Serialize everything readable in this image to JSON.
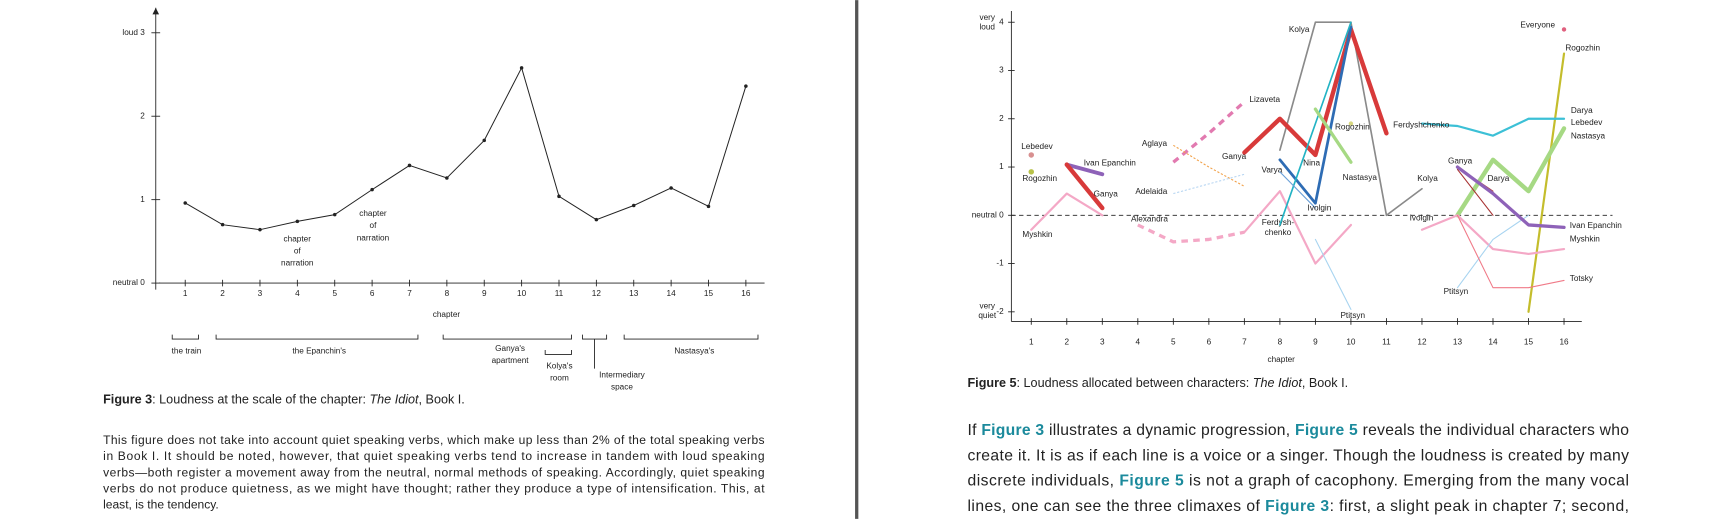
{
  "chart_data": [
    {
      "type": "line",
      "x": [
        1,
        2,
        3,
        4,
        5,
        6,
        7,
        8,
        9,
        10,
        11,
        12,
        13,
        14,
        15,
        16
      ],
      "xlim": [
        0.3,
        16.5
      ],
      "xticks": [
        1,
        2,
        3,
        4,
        5,
        6,
        7,
        8,
        9,
        10,
        11,
        12,
        13,
        14,
        15,
        16
      ],
      "ylim": [
        0,
        3.3
      ],
      "yticks": [
        {
          "value": 0,
          "label": "neutral 0"
        },
        1,
        2,
        {
          "value": 3,
          "label": "loud 3"
        }
      ],
      "values": [
        0.96,
        0.7,
        0.64,
        0.74,
        0.82,
        1.12,
        1.41,
        1.26,
        1.71,
        2.58,
        1.04,
        0.76,
        0.93,
        1.14,
        0.92,
        2.36
      ],
      "color": "#222",
      "xlabel": "chapter",
      "annotations": [
        {
          "lines": [
            "chapter",
            "of",
            "narration"
          ]
        },
        {
          "lines": [
            "chapter",
            "of",
            "narration"
          ]
        }
      ],
      "regions": [
        {
          "lines": [
            "the train"
          ]
        },
        {
          "lines": [
            "the Epanchin's"
          ]
        },
        {
          "lines": [
            "Ganya's",
            "apartment"
          ]
        },
        {
          "lines": [
            "Kolya's",
            "room"
          ]
        },
        {
          "lines": [
            "Intermediary",
            "space"
          ]
        },
        {
          "lines": [
            "Nastasya's"
          ]
        }
      ]
    },
    {
      "type": "line",
      "x": [
        1,
        2,
        3,
        4,
        5,
        6,
        7,
        8,
        9,
        10,
        11,
        12,
        13,
        14,
        15,
        16
      ],
      "xlim": [
        0.44,
        16.5
      ],
      "xticks": [
        1,
        2,
        3,
        4,
        5,
        6,
        7,
        8,
        9,
        10,
        11,
        12,
        13,
        14,
        15,
        16
      ],
      "ylim": [
        -2.2,
        4.3
      ],
      "yticks": [
        -2,
        -1,
        {
          "value": 0,
          "label": "neutral 0"
        },
        1,
        2,
        3,
        4
      ],
      "xlabel": "chapter",
      "annotations": [
        {
          "lines": [
            "very",
            "loud"
          ]
        },
        {
          "lines": [
            "very",
            "quiet"
          ]
        },
        {
          "lines": [
            "Ferdysh-",
            "chenko"
          ]
        }
      ],
      "series": [
        {
          "name": "Kolya",
          "color": "#8a8a8a",
          "width": 1.5,
          "values": [
            null,
            null,
            null,
            null,
            null,
            null,
            null,
            1.35,
            4,
            4,
            0,
            0.55,
            null,
            null,
            null,
            null
          ]
        },
        {
          "name": "Everyone",
          "color": "#e0607e",
          "width": 4,
          "values": [
            null,
            null,
            null,
            null,
            null,
            null,
            null,
            null,
            null,
            null,
            null,
            null,
            null,
            null,
            null,
            3.85
          ]
        },
        {
          "name": "Rogozhin",
          "color": "#c4bd2c",
          "width": 2,
          "values": [
            null,
            null,
            null,
            null,
            null,
            null,
            null,
            null,
            null,
            null,
            null,
            null,
            null,
            null,
            -2,
            3.35
          ]
        },
        {
          "name": "Darya",
          "color": "#a6d984",
          "width": 4,
          "values": [
            null,
            null,
            null,
            null,
            null,
            null,
            null,
            null,
            null,
            null,
            null,
            null,
            0,
            1.15,
            0.5,
            1.8
          ]
        },
        {
          "name": "Ferdyshchenko",
          "color": "#3cc0d6",
          "width": 2,
          "values": [
            null,
            null,
            null,
            null,
            null,
            null,
            null,
            null,
            null,
            null,
            null,
            1.9,
            1.85,
            1.65,
            2,
            2
          ]
        },
        {
          "name": "Ivan Epanchin",
          "color": "#8e62b8",
          "width": 3.5,
          "values": [
            null,
            1.05,
            0.85,
            null,
            null,
            null,
            null,
            null,
            null,
            null,
            null,
            null,
            null,
            null,
            null,
            null
          ]
        },
        {
          "name": "Ganya",
          "color": "#d83a3a",
          "width": 4,
          "values": [
            null,
            1.05,
            0.15,
            null,
            null,
            null,
            1.3,
            2,
            1.25,
            3.85,
            1.7,
            null,
            null,
            null,
            null,
            null
          ]
        },
        {
          "name": "Lizaveta",
          "color": "#e27ab0",
          "width": 3,
          "dashed": true,
          "values": [
            null,
            null,
            null,
            null,
            1.1,
            1.7,
            2.35,
            null,
            null,
            null,
            null,
            null,
            null,
            null,
            null,
            null
          ]
        },
        {
          "name": "Aglaya",
          "color": "#f2a24a",
          "width": 1,
          "dashed": true,
          "values": [
            null,
            null,
            null,
            null,
            1.45,
            1,
            0.6,
            null,
            null,
            null,
            null,
            null,
            null,
            null,
            null,
            null
          ]
        },
        {
          "name": "Lebedev",
          "color": "#d89090",
          "width": 5,
          "values": [
            1.25,
            null,
            null,
            null,
            null,
            null,
            null,
            null,
            null,
            null,
            null,
            null,
            null,
            null,
            null,
            null
          ]
        },
        {
          "name": "Rogozhin",
          "color": "#b8c24a",
          "width": 5,
          "values": [
            0.9,
            null,
            null,
            null,
            null,
            null,
            null,
            null,
            null,
            null,
            null,
            null,
            null,
            null,
            null,
            null
          ]
        },
        {
          "name": "Rogozhin",
          "color": "#d8d880",
          "width": 4,
          "values": [
            null,
            null,
            null,
            null,
            null,
            null,
            null,
            null,
            null,
            1.9,
            null,
            null,
            null,
            null,
            null,
            null
          ]
        },
        {
          "name": "Myshkin",
          "color": "#f4a8c6",
          "width": 2,
          "values": [
            -0.3,
            0.45,
            0,
            null,
            null,
            null,
            -0.35,
            0.5,
            -1,
            -0.2,
            null,
            -0.3,
            0,
            -0.7,
            -0.8,
            -0.7
          ]
        },
        {
          "name": "Alexandra",
          "color": "#f4a8c6",
          "width": 3,
          "dashed": true,
          "values": [
            null,
            null,
            null,
            -0.2,
            -0.55,
            -0.5,
            -0.35,
            null,
            null,
            null,
            null,
            null,
            null,
            null,
            null,
            null
          ]
        },
        {
          "name": "Adelaida",
          "color": "#b8d6f2",
          "width": 1,
          "dashed": true,
          "values": [
            null,
            null,
            null,
            null,
            0.45,
            0.65,
            0.85,
            null,
            null,
            null,
            null,
            null,
            null,
            null,
            null,
            null
          ]
        },
        {
          "name": "Varya",
          "color": "#2e6cb4",
          "width": 2.5,
          "values": [
            null,
            null,
            null,
            null,
            null,
            null,
            null,
            1.15,
            0.25,
            3.9,
            null,
            null,
            null,
            null,
            null,
            null
          ]
        },
        {
          "name": "Nina",
          "color": "#22b3c4",
          "width": 1.5,
          "values": [
            null,
            null,
            null,
            null,
            null,
            null,
            null,
            -0.2,
            1.9,
            4,
            null,
            null,
            null,
            null,
            null,
            null
          ]
        },
        {
          "name": "Ivolgin",
          "color": "#6aa0d8",
          "width": 1,
          "values": [
            null,
            null,
            null,
            null,
            null,
            null,
            null,
            0.9,
            0.15,
            null,
            null,
            null,
            null,
            null,
            null,
            null
          ]
        },
        {
          "name": "Nastasya",
          "color": "#a6d984",
          "width": 3,
          "values": [
            null,
            null,
            null,
            null,
            null,
            null,
            null,
            null,
            2.2,
            1.1,
            null,
            null,
            null,
            null,
            null,
            null
          ]
        },
        {
          "name": "Ptitsyn",
          "color": "#a8d4f0",
          "width": 1,
          "values": [
            null,
            null,
            null,
            null,
            null,
            null,
            null,
            null,
            -0.5,
            -1.95,
            null,
            null,
            -1.5,
            -0.5,
            0,
            null
          ]
        },
        {
          "name": "Totsky",
          "color": "#f07a88",
          "width": 1,
          "values": [
            null,
            null,
            null,
            null,
            null,
            null,
            null,
            null,
            null,
            null,
            null,
            null,
            0,
            -1.5,
            -1.5,
            -1.35
          ]
        },
        {
          "name": "Kolya",
          "color": "#a83232",
          "width": 1,
          "values": [
            null,
            null,
            null,
            null,
            null,
            null,
            null,
            null,
            null,
            null,
            null,
            null,
            0.95,
            0,
            null,
            null
          ]
        },
        {
          "name": "Ganya",
          "color": "#b04040",
          "width": 1,
          "values": [
            null,
            null,
            null,
            null,
            null,
            null,
            null,
            null,
            null,
            null,
            null,
            null,
            1,
            0.5,
            null,
            null
          ]
        },
        {
          "name": "Ivan Epanchin",
          "color": "#8e62b8",
          "width": 3,
          "values": [
            null,
            null,
            null,
            null,
            null,
            null,
            null,
            null,
            null,
            null,
            null,
            null,
            1,
            0.45,
            -0.2,
            -0.25
          ]
        }
      ]
    }
  ],
  "document": {
    "figure3": {
      "label": "Figure 3",
      "text": ": Loudness at the scale of the chapter: ",
      "title": "The Idiot",
      "end": ", Book I.",
      "note": [
        "This figure does not take into account quiet speaking verbs, which make up less than 2% of the total speaking verbs",
        "in Book I. It should be noted, however, that quiet speaking verbs tend to increase in tandem with loud speaking",
        "verbs—both register a movement away from the neutral, normal methods of speaking. Accordingly, quiet speaking",
        "verbs do not produce quietness, as we might have thought; rather they produce a type of intensification. This, at",
        "least, is the tendency."
      ]
    },
    "figure5": {
      "label": "Figure 5",
      "text": ": Loudness allocated between characters: ",
      "title": "The Idiot",
      "end": ", Book I."
    },
    "paragraph": [
      [
        {
          "text": "If "
        },
        {
          "link": "Figure 3"
        },
        {
          "text": " illustrates a dynamic progression, "
        },
        {
          "link": "Figure 5"
        },
        {
          "text": " reveals the individual characters who"
        }
      ],
      [
        {
          "text": "create it. It is as if each line is a voice or a singer. Though the loudness is created by many"
        }
      ],
      [
        {
          "text": "discrete individuals, "
        },
        {
          "link": "Figure 5"
        },
        {
          "text": " is not a graph of cacophony. Emerging from the many vocal"
        }
      ],
      [
        {
          "text": "lines, one can see the three climaxes of "
        },
        {
          "link": "Figure 3"
        },
        {
          "text": ": first, a slight peak in chapter 7; second,"
        }
      ]
    ]
  }
}
